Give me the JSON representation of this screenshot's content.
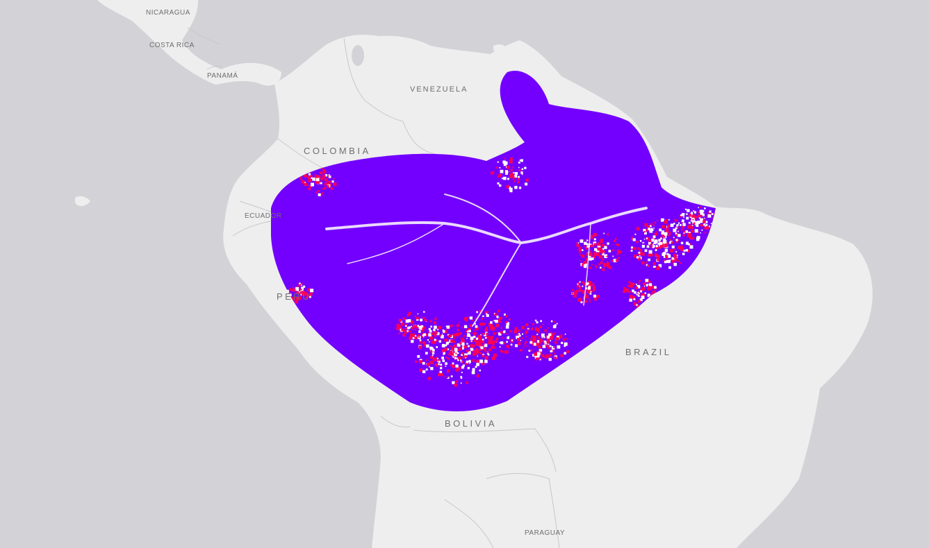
{
  "map": {
    "colors": {
      "ocean": "#d3d2d6",
      "land": "#eeeeee",
      "border": "#c8c8c8",
      "raster_forest": "#7300ff",
      "raster_loss": "#ff0055",
      "raster_nonforest": "#ffffff"
    },
    "labels": {
      "nicaragua": "NICARAGUA",
      "costa_rica": "COSTA RICA",
      "panama": "PANAMÁ",
      "venezuela": "VENEZUELA",
      "colombia": "COLOMBIA",
      "ecuador": "ECUADOR",
      "peru": "PERU",
      "brazil": "BRAZIL",
      "bolivia": "BOLIVIA",
      "paraguay": "PARAGUAY"
    }
  }
}
